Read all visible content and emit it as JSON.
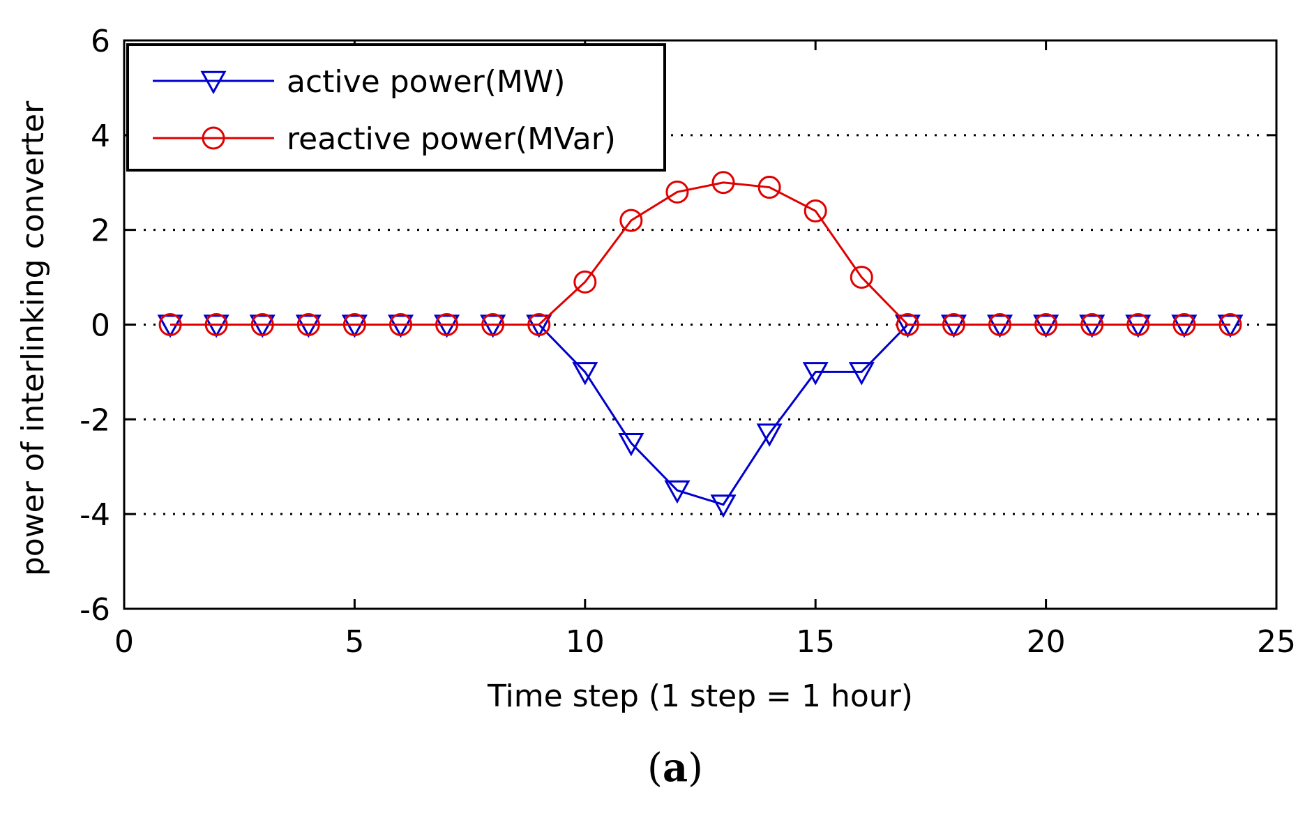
{
  "chart_data": {
    "type": "line",
    "xlabel": "Time step (1 step = 1 hour)",
    "ylabel": "power of interlinking converter",
    "xlim": [
      0,
      25
    ],
    "ylim": [
      -6,
      6
    ],
    "xticks": [
      0,
      5,
      10,
      15,
      20,
      25
    ],
    "yticks": [
      -6,
      -4,
      -2,
      0,
      2,
      4,
      6
    ],
    "grid": "horizontal dotted",
    "legend_position": "top-left",
    "panel_label": {
      "open": "(",
      "letter": "a",
      "close": ")"
    },
    "x": [
      1,
      2,
      3,
      4,
      5,
      6,
      7,
      8,
      9,
      10,
      11,
      12,
      13,
      14,
      15,
      16,
      17,
      18,
      19,
      20,
      21,
      22,
      23,
      24
    ],
    "series": [
      {
        "name": "active power(MW)",
        "color": "#0000cc",
        "marker": "triangle-down",
        "values": [
          0,
          0,
          0,
          0,
          0,
          0,
          0,
          0,
          0,
          -1.0,
          -2.5,
          -3.5,
          -3.8,
          -2.3,
          -1.0,
          -1.0,
          0,
          0,
          0,
          0,
          0,
          0,
          0,
          0
        ]
      },
      {
        "name": "reactive power(MVar)",
        "color": "#e00000",
        "marker": "circle",
        "values": [
          0,
          0,
          0,
          0,
          0,
          0,
          0,
          0,
          0,
          0.9,
          2.2,
          2.8,
          3.0,
          2.9,
          2.4,
          1.0,
          0,
          0,
          0,
          0,
          0,
          0,
          0,
          0
        ]
      }
    ]
  }
}
